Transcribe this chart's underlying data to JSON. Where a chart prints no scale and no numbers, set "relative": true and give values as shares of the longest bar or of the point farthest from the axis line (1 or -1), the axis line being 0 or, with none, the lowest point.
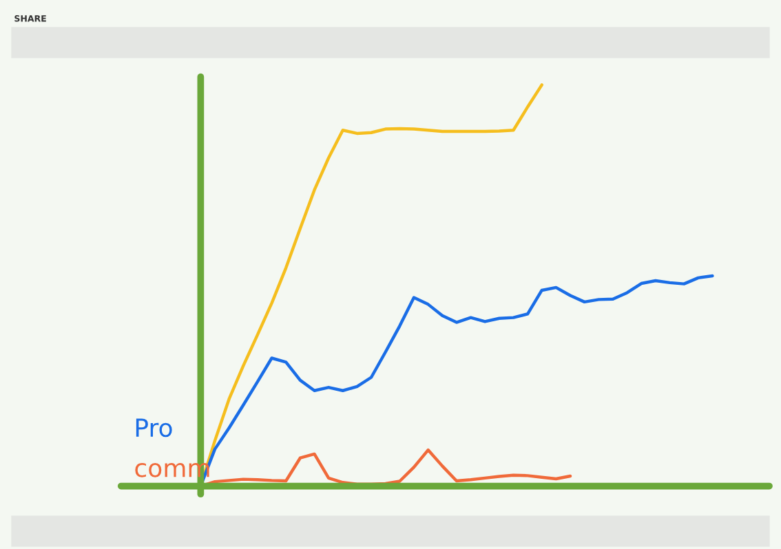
{
  "chart_data": {
    "type": "line",
    "title": "SHARE",
    "relative": true,
    "legend": false,
    "grid": false,
    "categories": [
      null,
      null,
      null,
      null,
      null,
      null,
      null,
      null,
      null,
      null,
      null,
      null,
      null,
      null,
      null,
      null,
      null,
      null,
      null,
      null,
      null,
      null,
      null,
      null,
      null,
      null,
      null,
      null,
      null,
      null,
      null,
      null,
      null,
      null,
      null,
      null,
      null
    ],
    "series": [
      {
        "color": "#f5be1e",
        "values": [
          0,
          0.113,
          0.217,
          0.3,
          0.377,
          0.456,
          0.544,
          0.642,
          0.738,
          0.818,
          0.887,
          0.879,
          0.881,
          0.89,
          0.891,
          0.89,
          0.887,
          0.884,
          0.884,
          0.884,
          0.884,
          0.885,
          0.887,
          0.945,
          1,
          null,
          null,
          null,
          null,
          null,
          null,
          null,
          null,
          null,
          null,
          null,
          null
        ]
      },
      {
        "name": "Pro",
        "color": "#1a6de6",
        "values": [
          0,
          0.092,
          0.145,
          0.202,
          0.26,
          0.319,
          0.309,
          0.264,
          0.238,
          0.246,
          0.238,
          0.248,
          0.271,
          0.334,
          0.399,
          0.47,
          0.453,
          0.425,
          0.408,
          0.42,
          0.41,
          0.418,
          0.42,
          0.429,
          0.488,
          0.495,
          0.475,
          0.459,
          0.465,
          0.466,
          0.482,
          0.505,
          0.512,
          0.507,
          0.504,
          0.519,
          0.524
        ]
      },
      {
        "name": "comm",
        "color": "#f06a3a",
        "values": [
          0,
          0.011,
          0.014,
          0.017,
          0.016,
          0.014,
          0.013,
          0.07,
          0.08,
          0.02,
          0.009,
          0.005,
          0.005,
          0.006,
          0.012,
          0.047,
          0.09,
          0.05,
          0.013,
          0.016,
          0.02,
          0.024,
          0.027,
          0.026,
          0.022,
          0.018,
          0.025,
          null,
          null,
          null,
          null,
          null,
          null,
          null,
          null,
          null,
          null
        ]
      }
    ]
  }
}
